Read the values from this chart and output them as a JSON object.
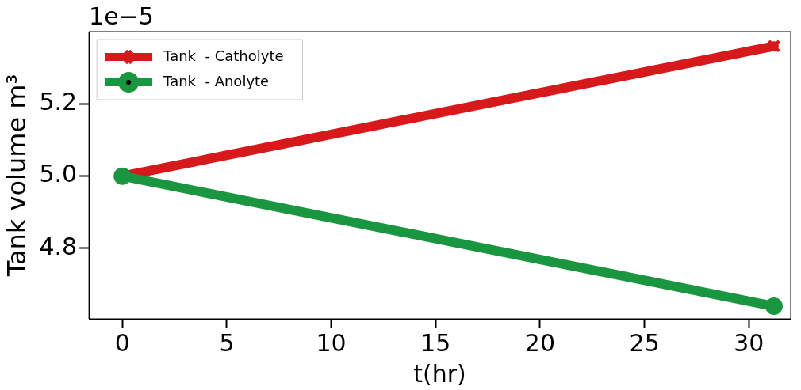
{
  "chart_data": {
    "type": "line",
    "xlabel": "t(hr)",
    "ylabel": "Tank volume m³",
    "annotations": [
      "1e−5"
    ],
    "x": [
      0,
      31.2
    ],
    "series": [
      {
        "name": "Tank  - Catholyte",
        "color": "#d7191c",
        "values": [
          5.0,
          5.36
        ],
        "marker": "cross"
      },
      {
        "name": "Tank  - Anolyte",
        "color": "#1a9641",
        "values": [
          5.0,
          4.64
        ],
        "marker": "circle"
      }
    ],
    "xlim": [
      -1.6,
      32
    ],
    "xticks": [
      0,
      5,
      10,
      15,
      20,
      25,
      30
    ],
    "ylim": [
      4.605,
      5.4
    ],
    "yticks": [
      4.8,
      {
        "value": 5.0,
        "label": "5.0"
      },
      5.2
    ],
    "grid": false,
    "legend": "top left",
    "line_style": "solid"
  }
}
